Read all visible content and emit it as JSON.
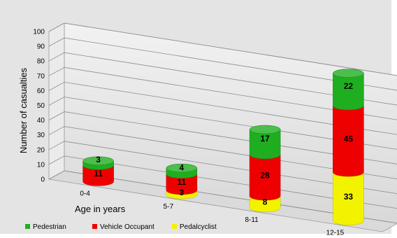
{
  "chart_data": {
    "type": "bar",
    "style": "3d-cylinder-stacked",
    "categories": [
      "0-4",
      "5-7",
      "8-11",
      "12-15"
    ],
    "series": [
      {
        "name": "Pedestrian",
        "color": "#1fae1f",
        "values": [
          3,
          4,
          17,
          22
        ]
      },
      {
        "name": "Vehicle Occupant",
        "color": "#ef0000",
        "values": [
          11,
          11,
          28,
          45
        ]
      },
      {
        "name": "Pedalcyclist",
        "color": "#f3f300",
        "values": [
          0,
          3,
          8,
          33
        ]
      }
    ],
    "stack_order_bottom_to_top": [
      "Pedalcyclist",
      "Vehicle Occupant",
      "Pedestrian"
    ],
    "value_labels": [
      [
        "3",
        "4",
        "17",
        "22"
      ],
      [
        "11",
        "11",
        "28",
        "45"
      ],
      [
        "",
        "3",
        "8",
        "33"
      ]
    ],
    "xlabel": "Age in years",
    "ylabel": "Number of casualties",
    "ylim": [
      0,
      100
    ],
    "yticks": [
      0,
      10,
      20,
      30,
      40,
      50,
      60,
      70,
      80,
      90,
      100
    ],
    "grid": true,
    "legend_position": "bottom",
    "background_color": "#e4e4e4"
  }
}
